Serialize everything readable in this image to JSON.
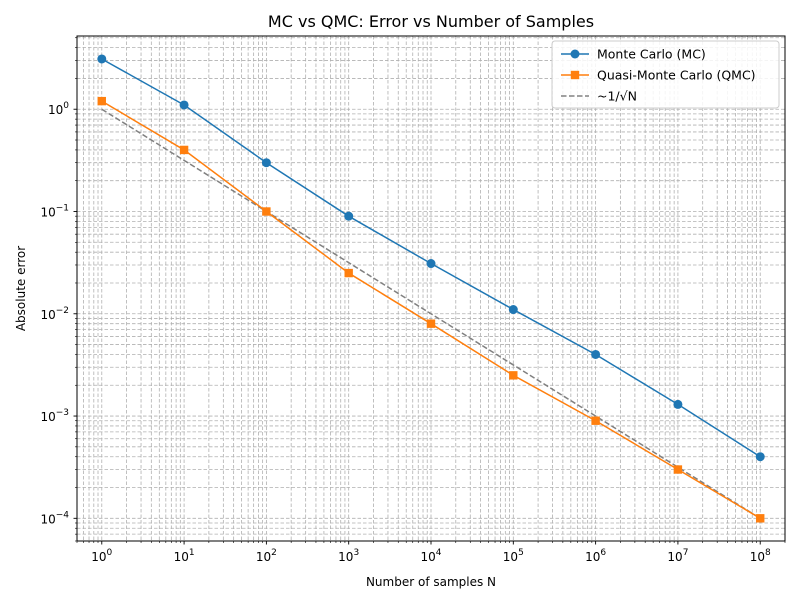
{
  "chart_data": {
    "type": "line",
    "title": "MC vs QMC: Error vs Number of Samples",
    "xlabel": "Number of samples N",
    "ylabel": "Absolute error",
    "xscale": "log",
    "yscale": "log",
    "xlim": [
      0.5,
      200000000
    ],
    "ylim": [
      6e-05,
      5.2
    ],
    "grid": true,
    "legend_position": "top-right",
    "x": [
      1,
      10,
      100,
      1000,
      10000,
      100000,
      1000000,
      10000000,
      100000000
    ],
    "series": [
      {
        "name": "Monte Carlo (MC)",
        "color": "#1f77b4",
        "marker": "circle",
        "linestyle": "solid",
        "values": [
          3.1,
          1.1,
          0.3,
          0.09,
          0.031,
          0.011,
          0.004,
          0.0013,
          0.0004
        ]
      },
      {
        "name": "Quasi-Monte Carlo (QMC)",
        "color": "#ff7f0e",
        "marker": "square",
        "linestyle": "solid",
        "values": [
          1.2,
          0.4,
          0.1,
          0.025,
          0.008,
          0.0025,
          0.0009,
          0.0003,
          0.0001
        ]
      },
      {
        "name": "~1/√N",
        "color": "#808080",
        "marker": "none",
        "linestyle": "dashed",
        "values": [
          1.0,
          0.316,
          0.1,
          0.0316,
          0.01,
          0.00316,
          0.001,
          0.000316,
          0.0001
        ]
      }
    ],
    "x_ticks": [
      {
        "value": 1,
        "mantissa": "10",
        "exp": "0"
      },
      {
        "value": 10,
        "mantissa": "10",
        "exp": "1"
      },
      {
        "value": 100,
        "mantissa": "10",
        "exp": "2"
      },
      {
        "value": 1000,
        "mantissa": "10",
        "exp": "3"
      },
      {
        "value": 10000,
        "mantissa": "10",
        "exp": "4"
      },
      {
        "value": 100000,
        "mantissa": "10",
        "exp": "5"
      },
      {
        "value": 1000000,
        "mantissa": "10",
        "exp": "6"
      },
      {
        "value": 10000000,
        "mantissa": "10",
        "exp": "7"
      },
      {
        "value": 100000000,
        "mantissa": "10",
        "exp": "8"
      }
    ],
    "y_ticks": [
      {
        "value": 0.0001,
        "mantissa": "10",
        "exp": "−4"
      },
      {
        "value": 0.001,
        "mantissa": "10",
        "exp": "−3"
      },
      {
        "value": 0.01,
        "mantissa": "10",
        "exp": "−2"
      },
      {
        "value": 0.1,
        "mantissa": "10",
        "exp": "−1"
      },
      {
        "value": 1,
        "mantissa": "10",
        "exp": "0"
      }
    ]
  }
}
